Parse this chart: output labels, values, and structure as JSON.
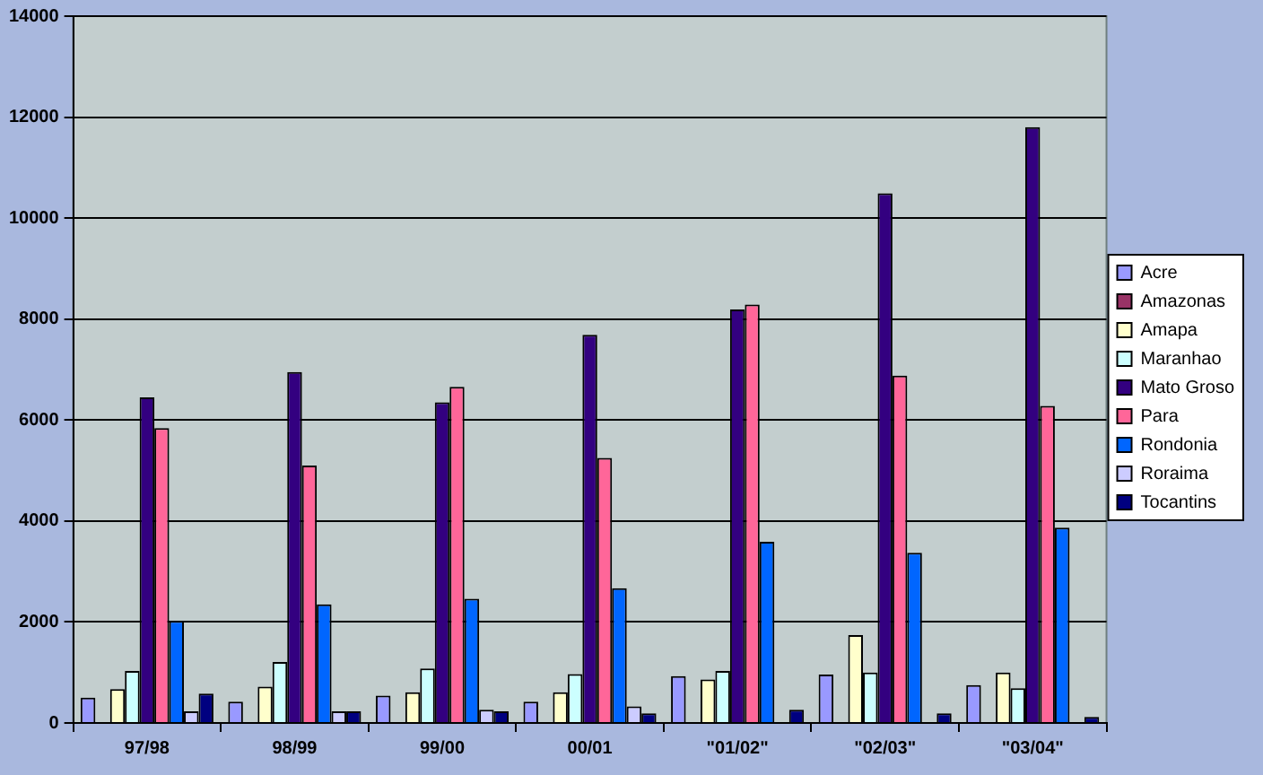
{
  "chart_data": {
    "type": "bar",
    "categories": [
      "97/98",
      "98/99",
      "99/00",
      "00/01",
      "\"01/02\"",
      "\"02/03\"",
      "\"03/04\""
    ],
    "series": [
      {
        "name": "Acre",
        "color": "#9999ff",
        "values": [
          500,
          420,
          540,
          420,
          930,
          960,
          750
        ]
      },
      {
        "name": "Amazonas",
        "color": "#993366",
        "values": [
          null,
          null,
          null,
          null,
          null,
          null,
          null
        ]
      },
      {
        "name": "Amapa",
        "color": "#ffffcc",
        "values": [
          670,
          720,
          610,
          610,
          860,
          1740,
          1000
        ]
      },
      {
        "name": "Maranhao",
        "color": "#ccffff",
        "values": [
          1030,
          1210,
          1080,
          970,
          1030,
          1000,
          690
        ]
      },
      {
        "name": "Mato Groso",
        "color": "#330080",
        "values": [
          6450,
          6950,
          6350,
          7690,
          8190,
          10490,
          11800
        ]
      },
      {
        "name": "Para",
        "color": "#ff6699",
        "values": [
          5840,
          5100,
          6660,
          5250,
          8290,
          6880,
          6280
        ]
      },
      {
        "name": "Rondonia",
        "color": "#0066ff",
        "values": [
          2020,
          2350,
          2460,
          2670,
          3590,
          3370,
          3870
        ]
      },
      {
        "name": "Roraima",
        "color": "#ccccff",
        "values": [
          230,
          230,
          260,
          330,
          null,
          null,
          null
        ]
      },
      {
        "name": "Tocantins",
        "color": "#000080",
        "values": [
          580,
          230,
          230,
          190,
          260,
          190,
          120
        ]
      }
    ],
    "ylim": [
      0,
      14000
    ],
    "yticks": [
      0,
      2000,
      4000,
      6000,
      8000,
      10000,
      12000,
      14000
    ],
    "grid": "y",
    "legend": "right"
  }
}
